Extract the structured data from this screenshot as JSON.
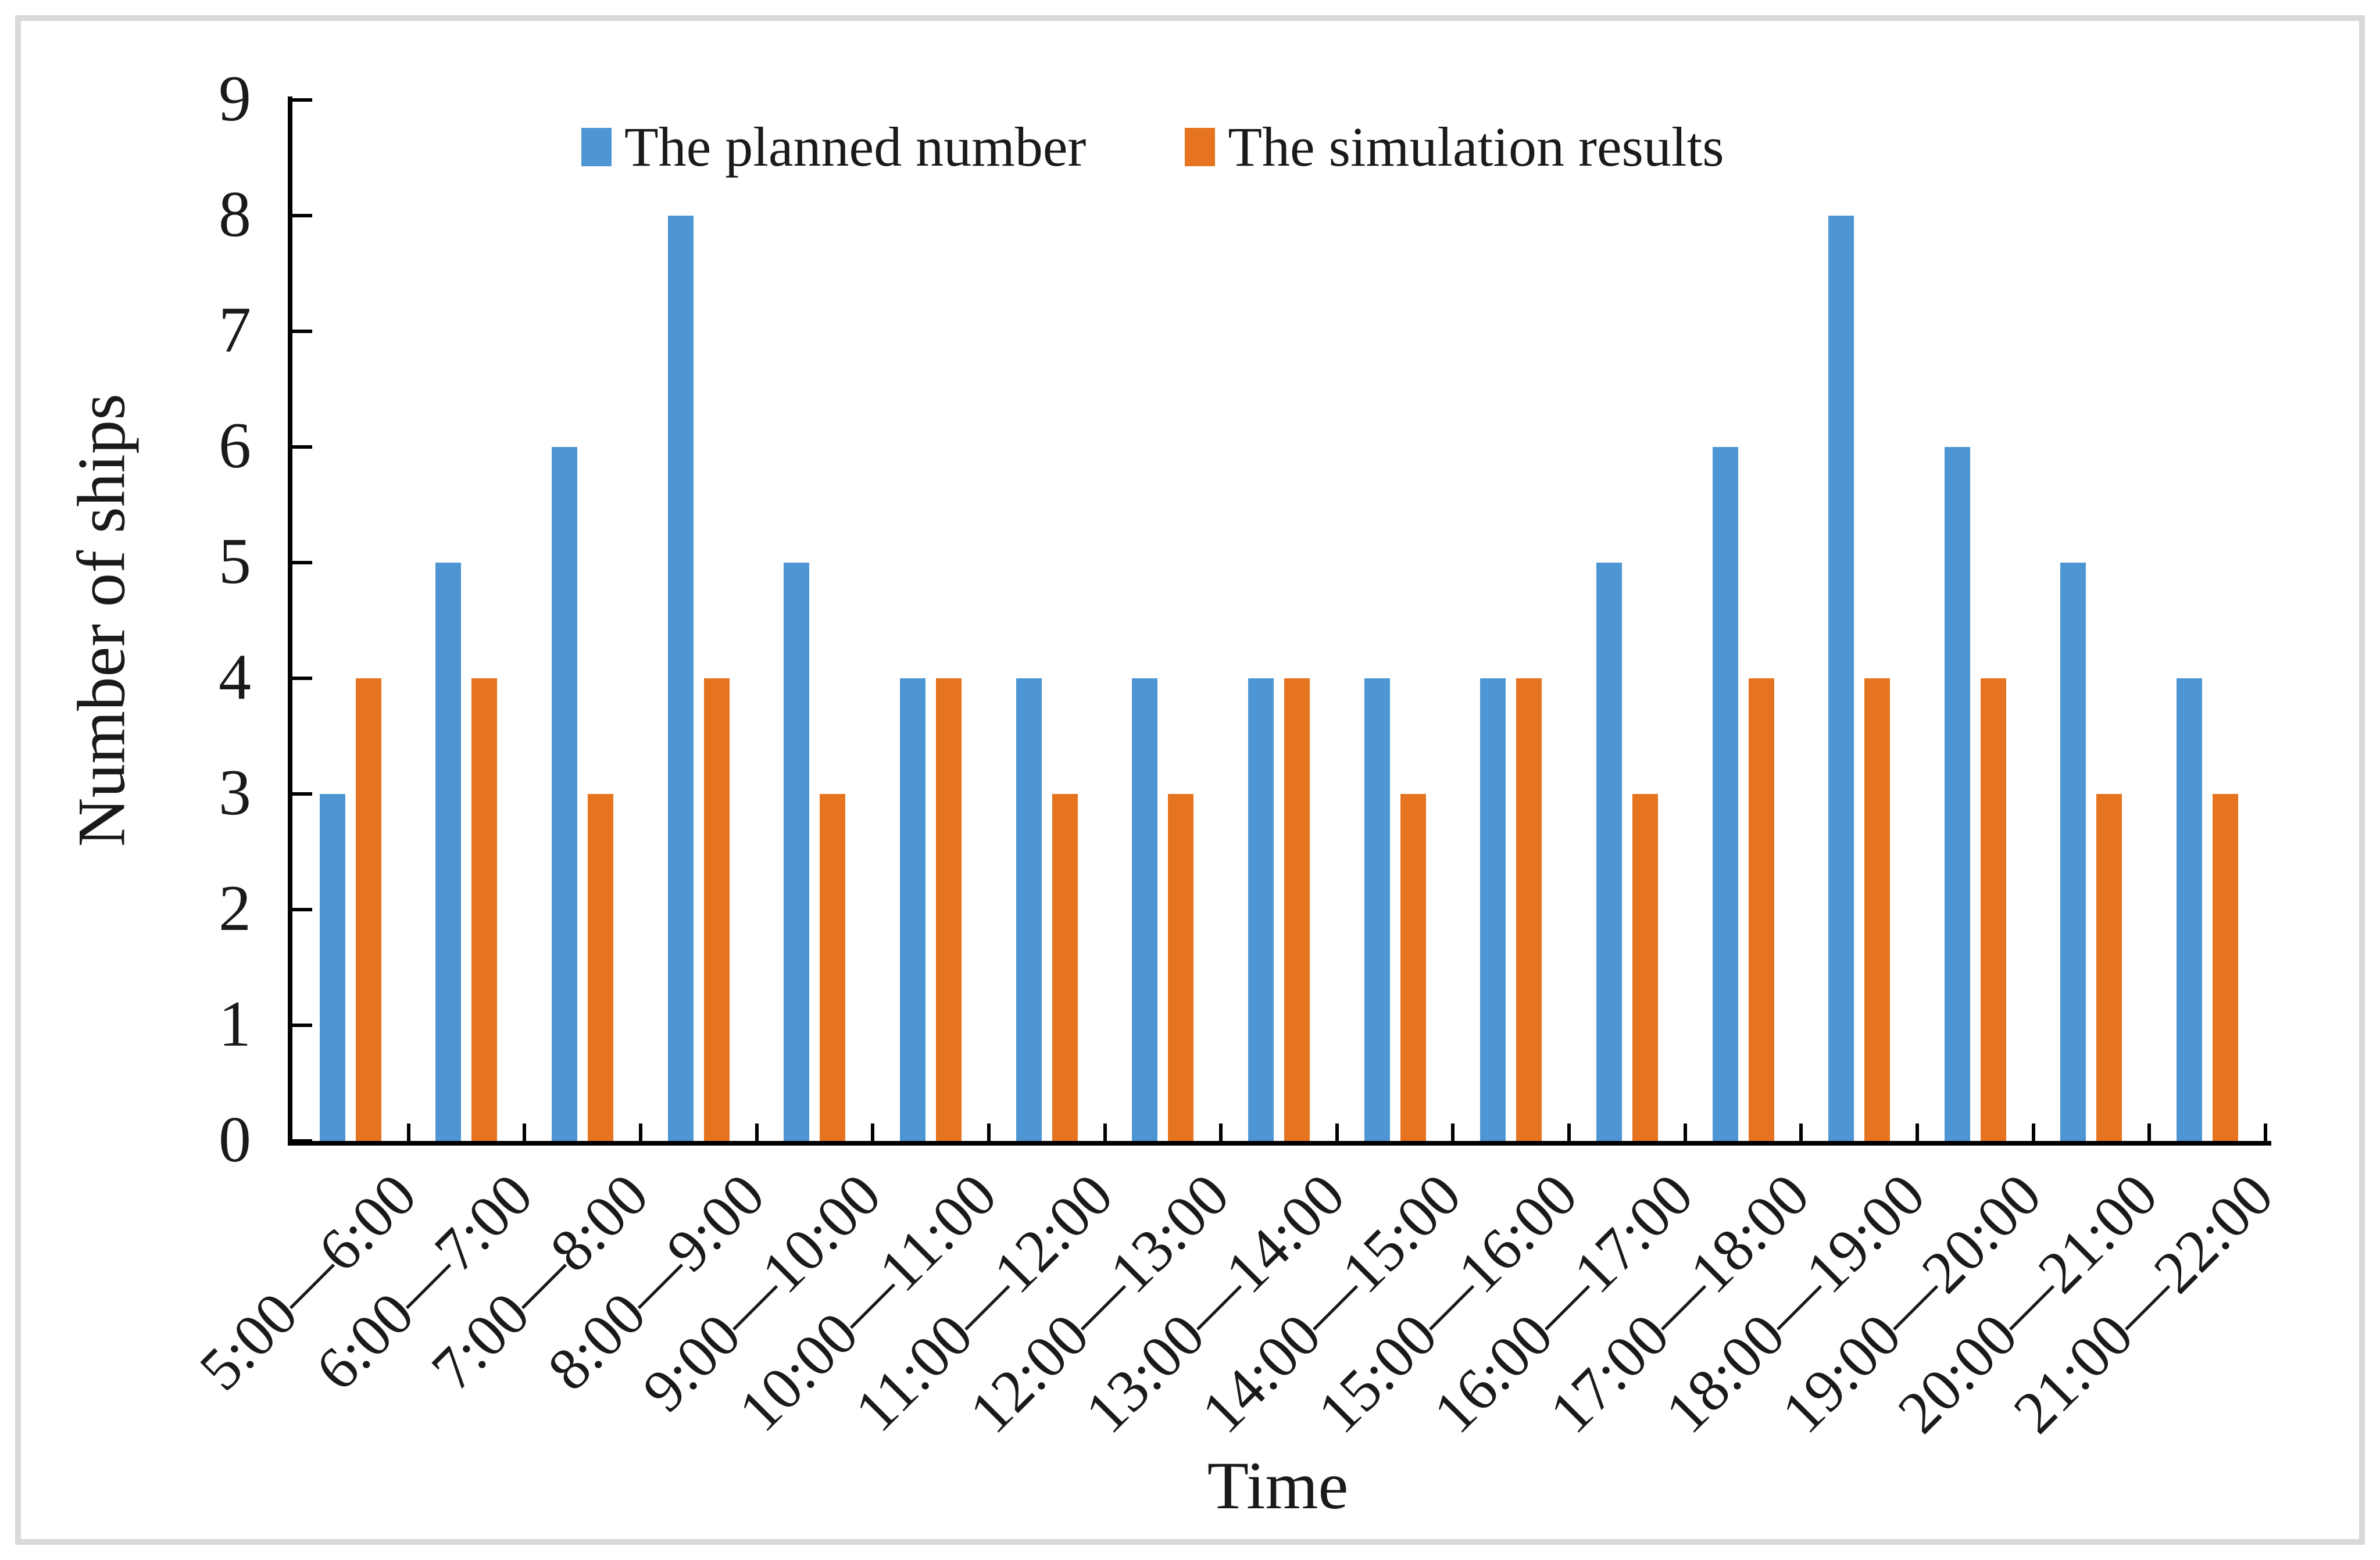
{
  "figure": {
    "background_color": "#ffffff",
    "frame_color": "#d9d9d9",
    "axis_color": "#000000"
  },
  "chart_data": {
    "type": "bar",
    "title": "",
    "xlabel": "Time",
    "ylabel": "Number of ships",
    "ylim": [
      0,
      9
    ],
    "yticks": [
      0,
      1,
      2,
      3,
      4,
      5,
      6,
      7,
      8,
      9
    ],
    "grid": false,
    "legend_position": "top-center",
    "categories": [
      "5:00—6:00",
      "6:00—7:00",
      "7:00—8:00",
      "8:00—9:00",
      "9:00—10:00",
      "10:00—11:00",
      "11:00—12:00",
      "12:00—13:00",
      "13:00—14:00",
      "14:00—15:00",
      "15:00—16:00",
      "16:00—17:00",
      "17:00—18:00",
      "18:00—19:00",
      "19:00—20:00",
      "20:00—21:00",
      "21:00—22:00"
    ],
    "series": [
      {
        "name": "The planned number",
        "color": "#4E96D3",
        "values": [
          3,
          5,
          6,
          8,
          5,
          4,
          4,
          4,
          4,
          4,
          4,
          5,
          6,
          8,
          6,
          5,
          4
        ]
      },
      {
        "name": "The simulation results",
        "color": "#E5731F",
        "values": [
          4,
          4,
          3,
          4,
          3,
          4,
          3,
          3,
          4,
          3,
          4,
          3,
          4,
          4,
          4,
          3,
          3
        ]
      }
    ]
  }
}
